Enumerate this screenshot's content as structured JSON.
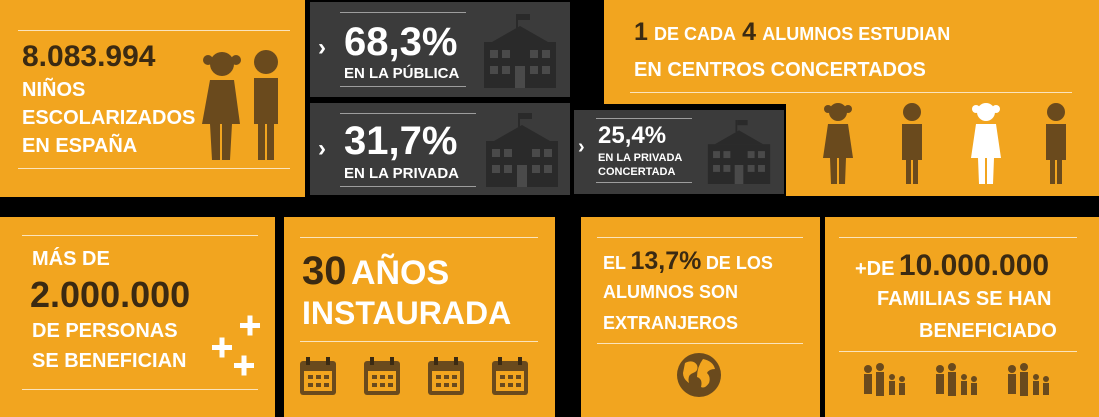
{
  "panel_a": {
    "count": "8.083.994",
    "line1": "NIÑOS",
    "line2": "ESCOLARIZADOS",
    "line3": "EN ESPAÑA"
  },
  "panel_public": {
    "percent": "68,3%",
    "label": "EN LA PÚBLICA"
  },
  "panel_private": {
    "percent": "31,7%",
    "label": "EN LA PRIVADA"
  },
  "panel_concertada": {
    "percent": "25,4%",
    "label1": "EN LA PRIVADA",
    "label2": "CONCERTADA"
  },
  "panel_ratio": {
    "line1_a": "1",
    "line1_b": "DE CADA",
    "line1_c": "4",
    "line1_d": "ALUMNOS ESTUDIAN",
    "line2": "EN CENTROS CONCERTADOS"
  },
  "panel_benefit": {
    "line1": "MÁS DE",
    "number": "2.000.000",
    "line2": "DE PERSONAS",
    "line3": "SE BENEFICIAN"
  },
  "panel_years": {
    "line1_a": "30",
    "line1_b": "AÑOS",
    "line2": "INSTAURADA"
  },
  "panel_foreign": {
    "line1_a": "EL",
    "line1_b": "13,7%",
    "line1_c": "DE LOS",
    "line2": "ALUMNOS SON",
    "line3": "EXTRANJEROS"
  },
  "panel_families": {
    "prefix": "+DE",
    "number": "10.000.000",
    "line2": "FAMILIAS SE HAN",
    "line3": "BENEFICIADO"
  },
  "colors": {
    "orange": "#F2A51F",
    "dark": "#3b3b3b",
    "brown": "#6a4a1d"
  }
}
